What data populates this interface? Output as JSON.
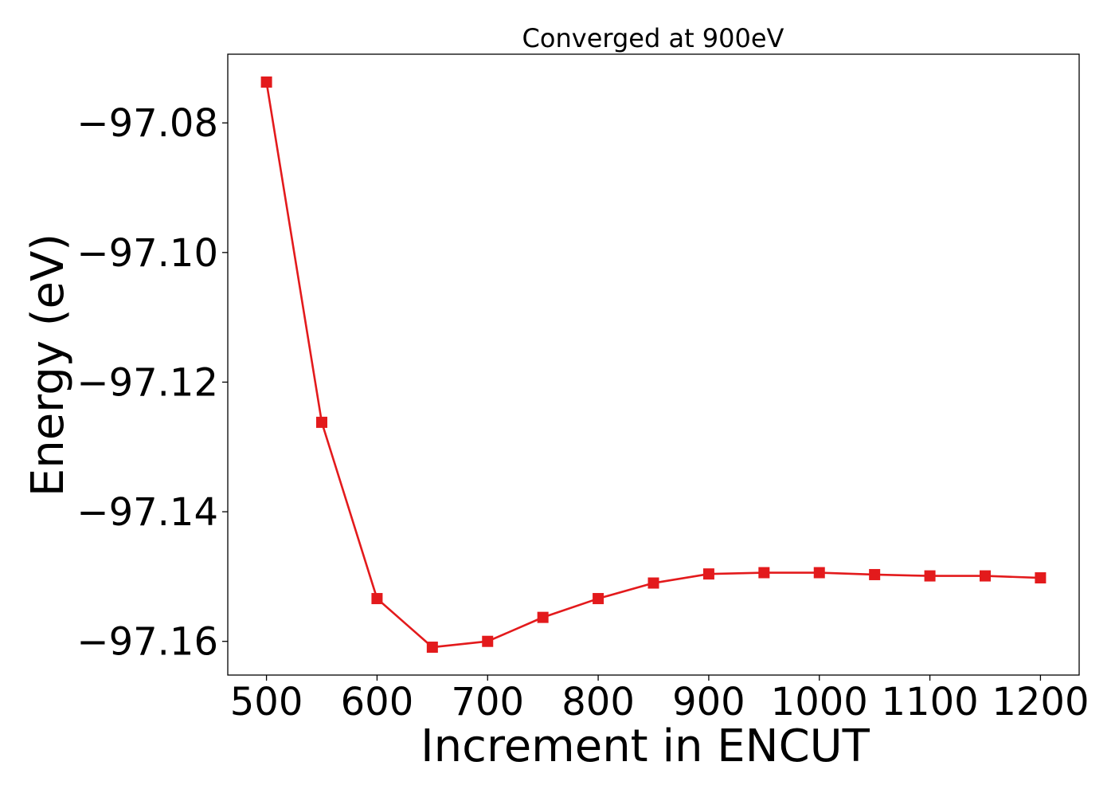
{
  "chart_data": {
    "type": "line",
    "title": "Converged at 900eV",
    "xlabel": "Increment in ENCUT",
    "ylabel": "Energy (eV)",
    "x": [
      500,
      550,
      600,
      650,
      700,
      750,
      800,
      850,
      900,
      950,
      1000,
      1050,
      1100,
      1150,
      1200
    ],
    "series": [
      {
        "color": "#e31a1c",
        "marker": "square",
        "values": [
          -97.0737,
          -97.1262,
          -97.1534,
          -97.1609,
          -97.16,
          -97.1563,
          -97.1534,
          -97.151,
          -97.1496,
          -97.1494,
          -97.1494,
          -97.1497,
          -97.1499,
          -97.1499,
          -97.1502
        ]
      }
    ],
    "xticks": [
      500,
      600,
      700,
      800,
      900,
      1000,
      1100,
      1200
    ],
    "xtick_labels": [
      "500",
      "600",
      "700",
      "800",
      "900",
      "1000",
      "1100",
      "1200"
    ],
    "yticks": [
      -97.08,
      -97.1,
      -97.12,
      -97.14,
      -97.16
    ],
    "ytick_labels": [
      "−97.08",
      "−97.10",
      "−97.12",
      "−97.14",
      "−97.16"
    ],
    "xlim": [
      465,
      1235
    ],
    "ylim": [
      -97.1652,
      -97.0694
    ],
    "grid": false,
    "legend": "none"
  }
}
